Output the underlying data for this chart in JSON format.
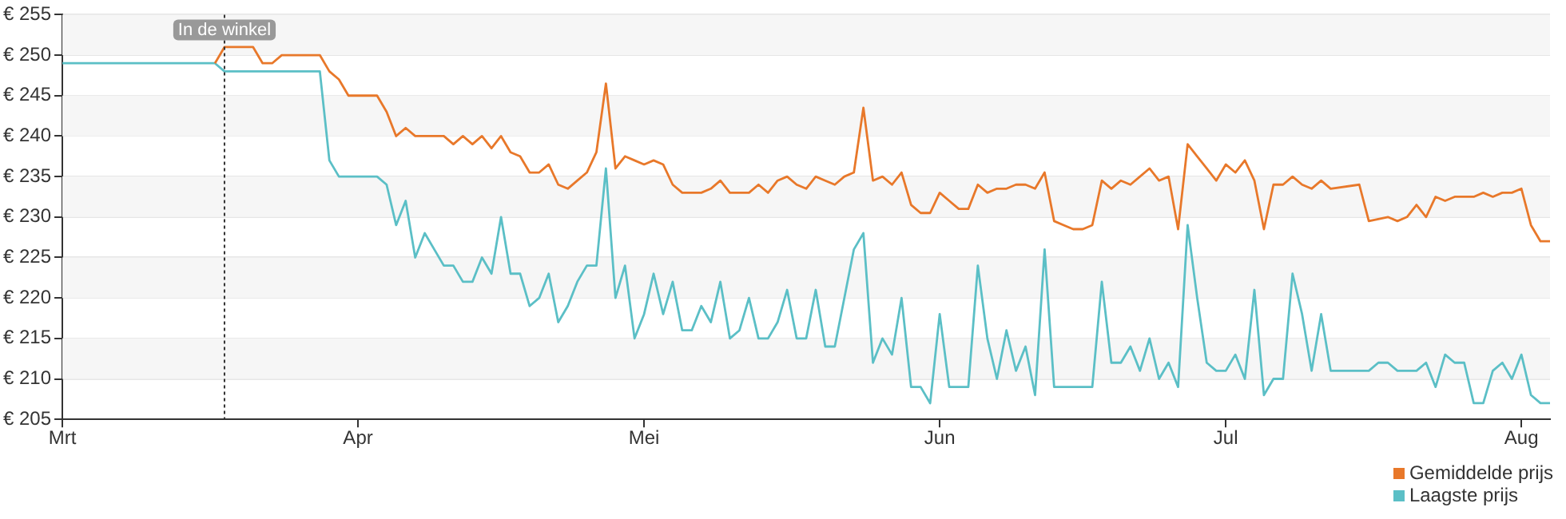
{
  "chart_data": {
    "type": "line",
    "xlim": [
      "--03-01",
      "--08-04"
    ],
    "xticks": [
      {
        "value": "--03-01",
        "label": "Mrt"
      },
      {
        "value": "--04-01",
        "label": "Apr"
      },
      {
        "value": "--05-01",
        "label": "Mei"
      },
      {
        "value": "--06-01",
        "label": "Jun"
      },
      {
        "value": "--07-01",
        "label": "Jul"
      },
      {
        "value": "--08-01",
        "label": "Aug"
      }
    ],
    "ylim": [
      205,
      255
    ],
    "yticks": [
      {
        "value": 205,
        "label": "€ 205"
      },
      {
        "value": 210,
        "label": "€ 210"
      },
      {
        "value": 215,
        "label": "€ 215"
      },
      {
        "value": 220,
        "label": "€ 220"
      },
      {
        "value": 225,
        "label": "€ 225"
      },
      {
        "value": 230,
        "label": "€ 230"
      },
      {
        "value": 235,
        "label": "€ 235"
      },
      {
        "value": 240,
        "label": "€ 240"
      },
      {
        "value": 245,
        "label": "€ 245"
      },
      {
        "value": 250,
        "label": "€ 250"
      },
      {
        "value": 255,
        "label": "€ 255"
      }
    ],
    "grid": "y",
    "legend": "bottom right",
    "marker": "none",
    "line_style": "solid",
    "ref_lines": [
      {
        "axis": "x",
        "value": "--03-18",
        "label": "In de winkel",
        "line_style": "dotted",
        "color": "#333333"
      }
    ],
    "series": [
      {
        "name": "Gemiddelde prijs",
        "color": "#e8782a",
        "x": [
          "--03-17",
          "--03-18",
          "--03-19",
          "--03-21",
          "--03-22",
          "--03-23",
          "--03-24",
          "--03-28",
          "--03-29",
          "--03-30",
          "--03-31",
          "--04-03",
          "--04-04",
          "--04-05",
          "--04-06",
          "--04-07",
          "--04-10",
          "--04-11",
          "--04-12",
          "--04-13",
          "--04-14",
          "--04-15",
          "--04-16",
          "--04-17",
          "--04-18",
          "--04-19",
          "--04-20",
          "--04-21",
          "--04-22",
          "--04-23",
          "--04-24",
          "--04-25",
          "--04-26",
          "--04-27",
          "--04-28",
          "--04-29",
          "--04-30",
          "--05-01",
          "--05-02",
          "--05-03",
          "--05-04",
          "--05-05",
          "--05-07",
          "--05-08",
          "--05-09",
          "--05-10",
          "--05-12",
          "--05-13",
          "--05-14",
          "--05-15",
          "--05-16",
          "--05-17",
          "--05-18",
          "--05-19",
          "--05-20",
          "--05-21",
          "--05-22",
          "--05-23",
          "--05-24",
          "--05-25",
          "--05-26",
          "--05-27",
          "--05-28",
          "--05-29",
          "--05-30",
          "--05-31",
          "--06-01",
          "--06-02",
          "--06-03",
          "--06-04",
          "--06-05",
          "--06-06",
          "--06-07",
          "--06-08",
          "--06-09",
          "--06-10",
          "--06-11",
          "--06-12",
          "--06-13",
          "--06-14",
          "--06-15",
          "--06-16",
          "--06-17",
          "--06-18",
          "--06-19",
          "--06-20",
          "--06-21",
          "--06-22",
          "--06-23",
          "--06-24",
          "--06-25",
          "--06-26",
          "--06-27",
          "--06-28",
          "--06-29",
          "--06-30",
          "--07-01",
          "--07-02",
          "--07-03",
          "--07-04",
          "--07-05",
          "--07-06",
          "--07-07",
          "--07-08",
          "--07-09",
          "--07-10",
          "--07-11",
          "--07-12",
          "--07-15",
          "--07-16",
          "--07-18",
          "--07-19",
          "--07-20",
          "--07-21",
          "--07-22",
          "--07-23",
          "--07-24",
          "--07-25",
          "--07-27",
          "--07-28",
          "--07-29",
          "--07-30",
          "--07-31",
          "--08-01",
          "--08-02",
          "--08-03",
          "--08-04"
        ],
        "values": [
          249,
          251,
          251,
          251,
          249,
          249,
          250,
          250,
          248,
          247,
          245,
          245,
          243,
          240,
          241,
          240,
          240,
          239,
          240,
          239,
          240,
          238.5,
          240,
          238,
          237.5,
          235.5,
          235.5,
          236.5,
          234,
          233.5,
          234.5,
          235.5,
          238,
          246.5,
          236,
          237.5,
          237,
          236.5,
          237,
          236.5,
          234,
          233,
          233,
          233.5,
          234.5,
          233,
          233,
          234,
          233,
          234.5,
          235,
          234,
          233.5,
          235,
          234.5,
          234,
          235,
          235.5,
          243.5,
          234.5,
          235,
          234,
          235.5,
          231.5,
          230.5,
          230.5,
          233,
          232,
          231,
          231,
          234,
          233,
          233.5,
          233.5,
          234,
          234,
          233.5,
          235.5,
          229.5,
          229,
          228.5,
          228.5,
          229,
          234.5,
          233.5,
          234.5,
          234,
          235,
          236,
          234.5,
          235,
          228.5,
          239,
          237.5,
          236,
          234.5,
          236.5,
          235.5,
          237,
          234.5,
          228.5,
          234,
          234,
          235,
          234,
          233.5,
          234.5,
          233.5,
          234,
          229.5,
          230,
          229.5,
          230,
          231.5,
          230,
          232.5,
          232,
          232.5,
          232.5,
          233,
          232.5,
          233,
          233,
          233.5,
          229,
          227,
          227
        ]
      },
      {
        "name": "Laagste prijs",
        "color": "#5bbfc6",
        "x": [
          "--03-01",
          "--03-17",
          "--03-18",
          "--03-28",
          "--03-29",
          "--03-30",
          "--04-03",
          "--04-04",
          "--04-05",
          "--04-06",
          "--04-07",
          "--04-08",
          "--04-09",
          "--04-10",
          "--04-11",
          "--04-12",
          "--04-13",
          "--04-14",
          "--04-15",
          "--04-16",
          "--04-17",
          "--04-18",
          "--04-19",
          "--04-20",
          "--04-21",
          "--04-22",
          "--04-23",
          "--04-24",
          "--04-25",
          "--04-26",
          "--04-27",
          "--04-28",
          "--04-29",
          "--04-30",
          "--05-01",
          "--05-02",
          "--05-03",
          "--05-04",
          "--05-05",
          "--05-06",
          "--05-07",
          "--05-08",
          "--05-09",
          "--05-10",
          "--05-11",
          "--05-12",
          "--05-13",
          "--05-14",
          "--05-15",
          "--05-16",
          "--05-17",
          "--05-18",
          "--05-19",
          "--05-20",
          "--05-21",
          "--05-22",
          "--05-23",
          "--05-24",
          "--05-25",
          "--05-26",
          "--05-27",
          "--05-28",
          "--05-29",
          "--05-30",
          "--05-31",
          "--06-01",
          "--06-02",
          "--06-04",
          "--06-05",
          "--06-06",
          "--06-07",
          "--06-08",
          "--06-09",
          "--06-10",
          "--06-11",
          "--06-12",
          "--06-13",
          "--06-17",
          "--06-18",
          "--06-19",
          "--06-20",
          "--06-21",
          "--06-22",
          "--06-23",
          "--06-24",
          "--06-25",
          "--06-26",
          "--06-27",
          "--06-28",
          "--06-29",
          "--06-30",
          "--07-01",
          "--07-02",
          "--07-03",
          "--07-04",
          "--07-05",
          "--07-06",
          "--07-07",
          "--07-08",
          "--07-09",
          "--07-10",
          "--07-11",
          "--07-12",
          "--07-16",
          "--07-17",
          "--07-18",
          "--07-19",
          "--07-21",
          "--07-22",
          "--07-23",
          "--07-24",
          "--07-25",
          "--07-26",
          "--07-27",
          "--07-28",
          "--07-29",
          "--07-30",
          "--07-31",
          "--08-01",
          "--08-02",
          "--08-03",
          "--08-04"
        ],
        "values": [
          249,
          249,
          248,
          248,
          237,
          235,
          235,
          234,
          229,
          232,
          225,
          228,
          226,
          224,
          224,
          222,
          222,
          225,
          223,
          230,
          223,
          223,
          219,
          220,
          223,
          217,
          219,
          222,
          224,
          224,
          236,
          220,
          224,
          215,
          218,
          223,
          218,
          222,
          216,
          216,
          219,
          217,
          222,
          215,
          216,
          220,
          215,
          215,
          217,
          221,
          215,
          215,
          221,
          214,
          214,
          220,
          226,
          228,
          212,
          215,
          213,
          220,
          209,
          209,
          207,
          218,
          209,
          209,
          224,
          215,
          210,
          216,
          211,
          214,
          208,
          226,
          209,
          209,
          222,
          212,
          212,
          214,
          211,
          215,
          210,
          212,
          209,
          229,
          220,
          212,
          211,
          211,
          213,
          210,
          221,
          208,
          210,
          210,
          223,
          218,
          211,
          218,
          211,
          211,
          212,
          212,
          211,
          211,
          212,
          209,
          213,
          212,
          212,
          207,
          207,
          211,
          212,
          210,
          213,
          208,
          207,
          207
        ]
      }
    ]
  }
}
